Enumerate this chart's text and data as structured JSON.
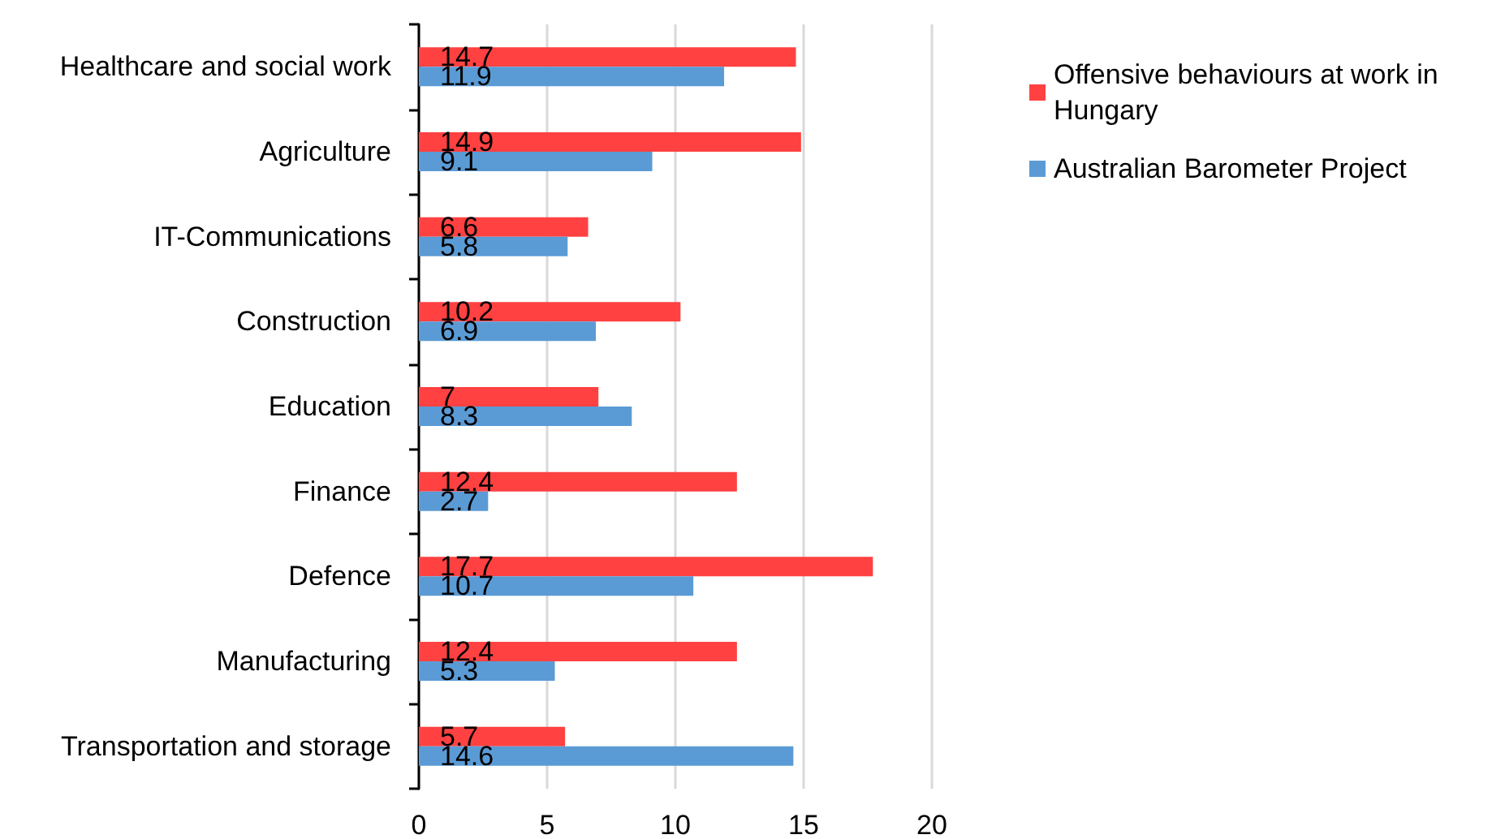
{
  "chart_data": {
    "type": "bar",
    "orientation": "horizontal",
    "categories": [
      "Healthcare and social work",
      "Agriculture",
      "IT-Communications",
      "Construction",
      "Education",
      "Finance",
      "Defence",
      "Manufacturing",
      "Transportation and storage"
    ],
    "series": [
      {
        "name": "Offensive behaviours at work in Hungary",
        "color": "#ff4141",
        "values": [
          14.7,
          14.9,
          6.6,
          10.2,
          7,
          12.4,
          17.7,
          12.4,
          5.7
        ]
      },
      {
        "name": "Australian Barometer Project",
        "color": "#5b9bd5",
        "values": [
          11.9,
          9.1,
          5.8,
          6.9,
          8.3,
          2.7,
          10.7,
          5.3,
          14.6
        ]
      }
    ],
    "xlim": [
      0,
      20
    ],
    "xticks": [
      0,
      5,
      10,
      15,
      20
    ],
    "grid": "x",
    "legend": "top right",
    "data_labels": true
  }
}
